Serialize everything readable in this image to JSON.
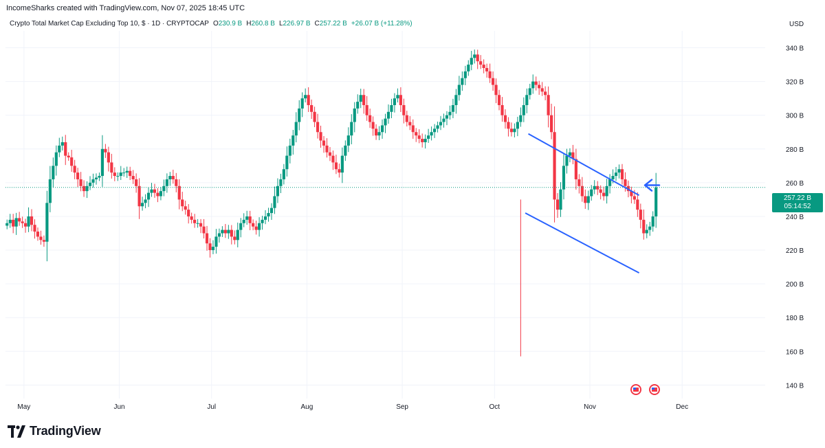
{
  "header": {
    "author_line": "IncomeSharks created with TradingView.com, Nov 07, 2025 18:45 UTC",
    "symbol_title": "Crypto Total Market Cap Excluding Top 10, $ · 1D · CRYPTOCAP",
    "ohlc": {
      "o_label": "O",
      "o_value": "230.9 B",
      "h_label": "H",
      "h_value": "260.8 B",
      "l_label": "L",
      "l_value": "226.97 B",
      "c_label": "C",
      "c_value": "257.22 B",
      "change": "+26.07 B (+11.28%)"
    },
    "currency": "USD"
  },
  "price_scale": {
    "last_price": "257.22 B",
    "countdown": "05:14:52"
  },
  "footer": {
    "brand": "TradingView"
  },
  "colors": {
    "up": "#089981",
    "down": "#F23645",
    "annotation": "#2962FF",
    "grid": "#F0F3FA",
    "text": "#131722"
  },
  "chart_data": {
    "type": "candlestick",
    "title": "Crypto Total Market Cap Excluding Top 10, $ · 1D · CRYPTOCAP",
    "ylabel": "USD",
    "ylim": [
      132,
      350
    ],
    "ytick_values": [
      140,
      160,
      180,
      200,
      220,
      240,
      260,
      280,
      300,
      320,
      340
    ],
    "ytick_labels": [
      "140 B",
      "160 B",
      "180 B",
      "200 B",
      "220 B",
      "240 B",
      "260 B",
      "280 B",
      "300 B",
      "320 B",
      "340 B"
    ],
    "xticks": [
      {
        "label": "May",
        "date": "2025-05-01"
      },
      {
        "label": "Jun",
        "date": "2025-06-01"
      },
      {
        "label": "Jul",
        "date": "2025-07-01"
      },
      {
        "label": "Aug",
        "date": "2025-08-01"
      },
      {
        "label": "Sep",
        "date": "2025-09-01"
      },
      {
        "label": "Oct",
        "date": "2025-10-01"
      },
      {
        "label": "Nov",
        "date": "2025-11-01"
      },
      {
        "label": "Dec",
        "date": "2025-12-01"
      }
    ],
    "start_date": "2025-04-25",
    "end_date": "2025-12-28",
    "last_price": 257.22,
    "closes": [
      236,
      238,
      234,
      239,
      237,
      236,
      234,
      240,
      235,
      231,
      228,
      226,
      225,
      248,
      262,
      270,
      278,
      282,
      284,
      276,
      275,
      270,
      266,
      262,
      258,
      255,
      258,
      260,
      262,
      263,
      264,
      280,
      278,
      272,
      266,
      264,
      264,
      266,
      266,
      267,
      264,
      262,
      258,
      246,
      248,
      250,
      254,
      256,
      254,
      252,
      255,
      258,
      262,
      264,
      262,
      258,
      250,
      246,
      244,
      240,
      238,
      236,
      236,
      234,
      230,
      224,
      220,
      222,
      228,
      230,
      232,
      230,
      232,
      228,
      226,
      232,
      236,
      238,
      240,
      236,
      234,
      232,
      236,
      238,
      240,
      242,
      245,
      252,
      258,
      262,
      268,
      276,
      282,
      288,
      296,
      304,
      310,
      312,
      306,
      302,
      296,
      290,
      285,
      282,
      278,
      276,
      272,
      268,
      266,
      276,
      282,
      288,
      296,
      304,
      308,
      312,
      306,
      300,
      296,
      292,
      288,
      290,
      294,
      298,
      302,
      306,
      310,
      312,
      306,
      300,
      296,
      294,
      290,
      288,
      286,
      284,
      286,
      288,
      290,
      292,
      294,
      296,
      298,
      300,
      302,
      306,
      312,
      318,
      322,
      326,
      330,
      334,
      336,
      332,
      330,
      328,
      326,
      322,
      318,
      312,
      306,
      300,
      296,
      292,
      290,
      292,
      296,
      300,
      306,
      312,
      316,
      320,
      318,
      316,
      314,
      312,
      300,
      290,
      250,
      244,
      256,
      270,
      276,
      278,
      274,
      262,
      258,
      252,
      248,
      252,
      256,
      258,
      256,
      254,
      252,
      258,
      262,
      264,
      266,
      268,
      262,
      258,
      255,
      252,
      250,
      244,
      238,
      230,
      232,
      234,
      240,
      257.22
    ],
    "annotations": {
      "channel_upper": {
        "from": {
          "date": "2025-10-12",
          "value": 289
        },
        "to": {
          "date": "2025-11-17",
          "value": 252.5
        }
      },
      "channel_lower": {
        "from": {
          "date": "2025-10-11",
          "value": 242
        },
        "to": {
          "date": "2025-11-17",
          "value": 206.5
        }
      },
      "arrow_value": 258.5
    }
  }
}
